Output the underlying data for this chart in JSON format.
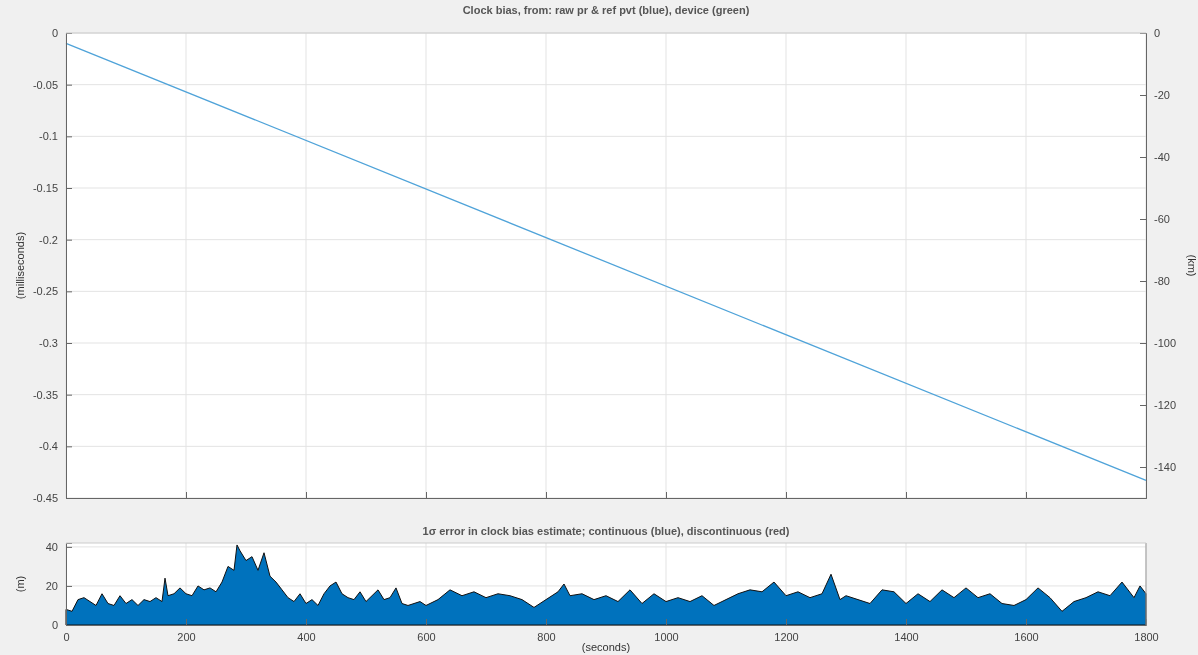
{
  "chart_data": [
    {
      "type": "line",
      "title": "Clock bias, from: raw pr & ref pvt (blue), device (green)",
      "ylabel": "(milliseconds)",
      "y2label": "(km)",
      "x": [
        0,
        1800
      ],
      "series": [
        {
          "color": "#4fa3d9",
          "values": [
            -0.01,
            -0.433
          ]
        }
      ],
      "xlim": [
        0,
        1800
      ],
      "xticks": [
        0,
        200,
        400,
        600,
        800,
        1000,
        1200,
        1400,
        1600,
        1800
      ],
      "ylim": [
        -0.45,
        0
      ],
      "yticks": [
        0,
        -0.05,
        -0.1,
        -0.15,
        -0.2,
        -0.25,
        -0.3,
        -0.35,
        -0.4,
        -0.45
      ],
      "y2lim": [
        -150,
        0
      ],
      "y2ticks": [
        0,
        -20,
        -40,
        -60,
        -80,
        -100,
        -120,
        -140
      ],
      "grid": true,
      "tick_labels": "y"
    },
    {
      "type": "area",
      "title": "1σ error in clock bias estimate; continuous (blue), discontinuous (red)",
      "ylabel": "(m)",
      "xlabel": "(seconds)",
      "x": [
        0,
        10,
        20,
        30,
        40,
        50,
        60,
        70,
        80,
        90,
        100,
        110,
        120,
        130,
        140,
        150,
        160,
        165,
        170,
        180,
        190,
        200,
        210,
        220,
        230,
        240,
        250,
        260,
        270,
        280,
        285,
        290,
        300,
        310,
        320,
        330,
        340,
        350,
        360,
        370,
        380,
        390,
        400,
        410,
        420,
        430,
        440,
        450,
        460,
        470,
        480,
        490,
        500,
        510,
        520,
        530,
        540,
        550,
        560,
        570,
        580,
        590,
        600,
        620,
        640,
        660,
        680,
        700,
        720,
        740,
        760,
        780,
        800,
        820,
        830,
        840,
        860,
        880,
        900,
        920,
        940,
        960,
        980,
        1000,
        1020,
        1040,
        1060,
        1080,
        1100,
        1120,
        1140,
        1160,
        1180,
        1200,
        1220,
        1240,
        1260,
        1275,
        1290,
        1300,
        1320,
        1340,
        1360,
        1380,
        1400,
        1420,
        1440,
        1460,
        1480,
        1500,
        1520,
        1540,
        1560,
        1580,
        1600,
        1620,
        1640,
        1660,
        1680,
        1700,
        1720,
        1740,
        1760,
        1780,
        1790,
        1800
      ],
      "series": [
        {
          "color": "#0072bd",
          "values": [
            8,
            7,
            13,
            14,
            12,
            10,
            16,
            11,
            10,
            15,
            11,
            13,
            10,
            13,
            12,
            14,
            12,
            24,
            15,
            16,
            19,
            16,
            15,
            20,
            18,
            19,
            17,
            22,
            30,
            28,
            41,
            38,
            33,
            35,
            28,
            37,
            25,
            22,
            18,
            14,
            12,
            16,
            11,
            13,
            10,
            16,
            20,
            22,
            16,
            14,
            13,
            17,
            12,
            15,
            18,
            13,
            14,
            19,
            11,
            10,
            11,
            12,
            10,
            13,
            18,
            15,
            17,
            14,
            16,
            15,
            13,
            9,
            13,
            17,
            21,
            15,
            16,
            13,
            15,
            12,
            18,
            11,
            16,
            12,
            14,
            12,
            15,
            10,
            13,
            16,
            18,
            17,
            22,
            15,
            17,
            14,
            16,
            26,
            13,
            15,
            13,
            11,
            18,
            17,
            11,
            16,
            12,
            18,
            14,
            19,
            14,
            16,
            11,
            10,
            13,
            19,
            14,
            7,
            12,
            14,
            17,
            15,
            22,
            14,
            20,
            16
          ]
        }
      ],
      "xlim": [
        0,
        1800
      ],
      "xticks": [
        0,
        200,
        400,
        600,
        800,
        1000,
        1200,
        1400,
        1600,
        1800
      ],
      "ylim": [
        0,
        42
      ],
      "yticks": [
        0,
        20,
        40
      ],
      "grid": true
    }
  ]
}
